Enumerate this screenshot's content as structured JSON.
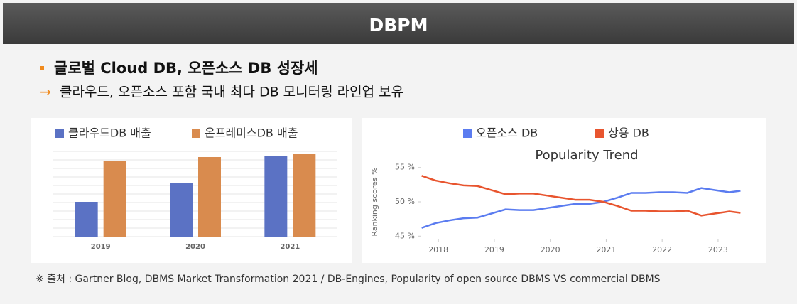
{
  "header": {
    "title": "DBPM"
  },
  "bullets": [
    "글로벌 Cloud DB, 오픈소스 DB 성장세",
    "클라우드, 오픈소스 포함 국내 최다 DB 모니터링 라인업 보유"
  ],
  "source": "※ 출처 : Gartner Blog, DBMS Market Transformation 2021 / DB-Engines, Popularity of open source DBMS VS commercial DBMS",
  "chart_data": [
    {
      "type": "bar",
      "categories": [
        "2019",
        "2020",
        "2021"
      ],
      "series": [
        {
          "name": "클라우드DB 매출",
          "color": "#5b72c4",
          "values": [
            49,
            75,
            113
          ]
        },
        {
          "name": "온프레미스DB 매출",
          "color": "#d98b4e",
          "values": [
            107,
            112,
            117
          ]
        }
      ],
      "ylim": [
        0,
        120
      ],
      "yticks": [
        0,
        12,
        24,
        36,
        48,
        60,
        72,
        84,
        96,
        108,
        120
      ],
      "grid": true,
      "legend": "top"
    },
    {
      "type": "line",
      "title": "Popularity Trend",
      "y_label": "Ranking scores %",
      "x": [
        2017.7,
        2017.95,
        2018.2,
        2018.45,
        2018.7,
        2018.95,
        2019.2,
        2019.45,
        2019.7,
        2019.95,
        2020.2,
        2020.45,
        2020.7,
        2020.95,
        2021.2,
        2021.45,
        2021.7,
        2021.95,
        2022.2,
        2022.45,
        2022.7,
        2022.95,
        2023.2,
        2023.4
      ],
      "series": [
        {
          "name": "오픈소스 DB",
          "color": "#5b7cf0",
          "values": [
            46.2,
            46.9,
            47.3,
            47.6,
            47.7,
            48.3,
            48.9,
            48.8,
            48.8,
            49.1,
            49.4,
            49.7,
            49.7,
            50.0,
            50.6,
            51.3,
            51.3,
            51.4,
            51.4,
            51.3,
            52.0,
            51.7,
            51.4,
            51.6
          ]
        },
        {
          "name": "상용 DB",
          "color": "#e8552f",
          "values": [
            53.8,
            53.1,
            52.7,
            52.4,
            52.3,
            51.7,
            51.1,
            51.2,
            51.2,
            50.9,
            50.6,
            50.3,
            50.3,
            50.0,
            49.4,
            48.7,
            48.7,
            48.6,
            48.6,
            48.7,
            48.0,
            48.3,
            48.6,
            48.4
          ]
        }
      ],
      "xlim": [
        2017.68,
        2023.42
      ],
      "xticks": [
        2018,
        2019,
        2020,
        2021,
        2022,
        2023
      ],
      "ylim": [
        44.2,
        55.8
      ],
      "yticks": [
        {
          "value": 45,
          "label": "45 %"
        },
        {
          "value": 50,
          "label": "50 %"
        },
        {
          "value": 55,
          "label": "55 %"
        }
      ],
      "grid": false,
      "legend": "top"
    }
  ]
}
